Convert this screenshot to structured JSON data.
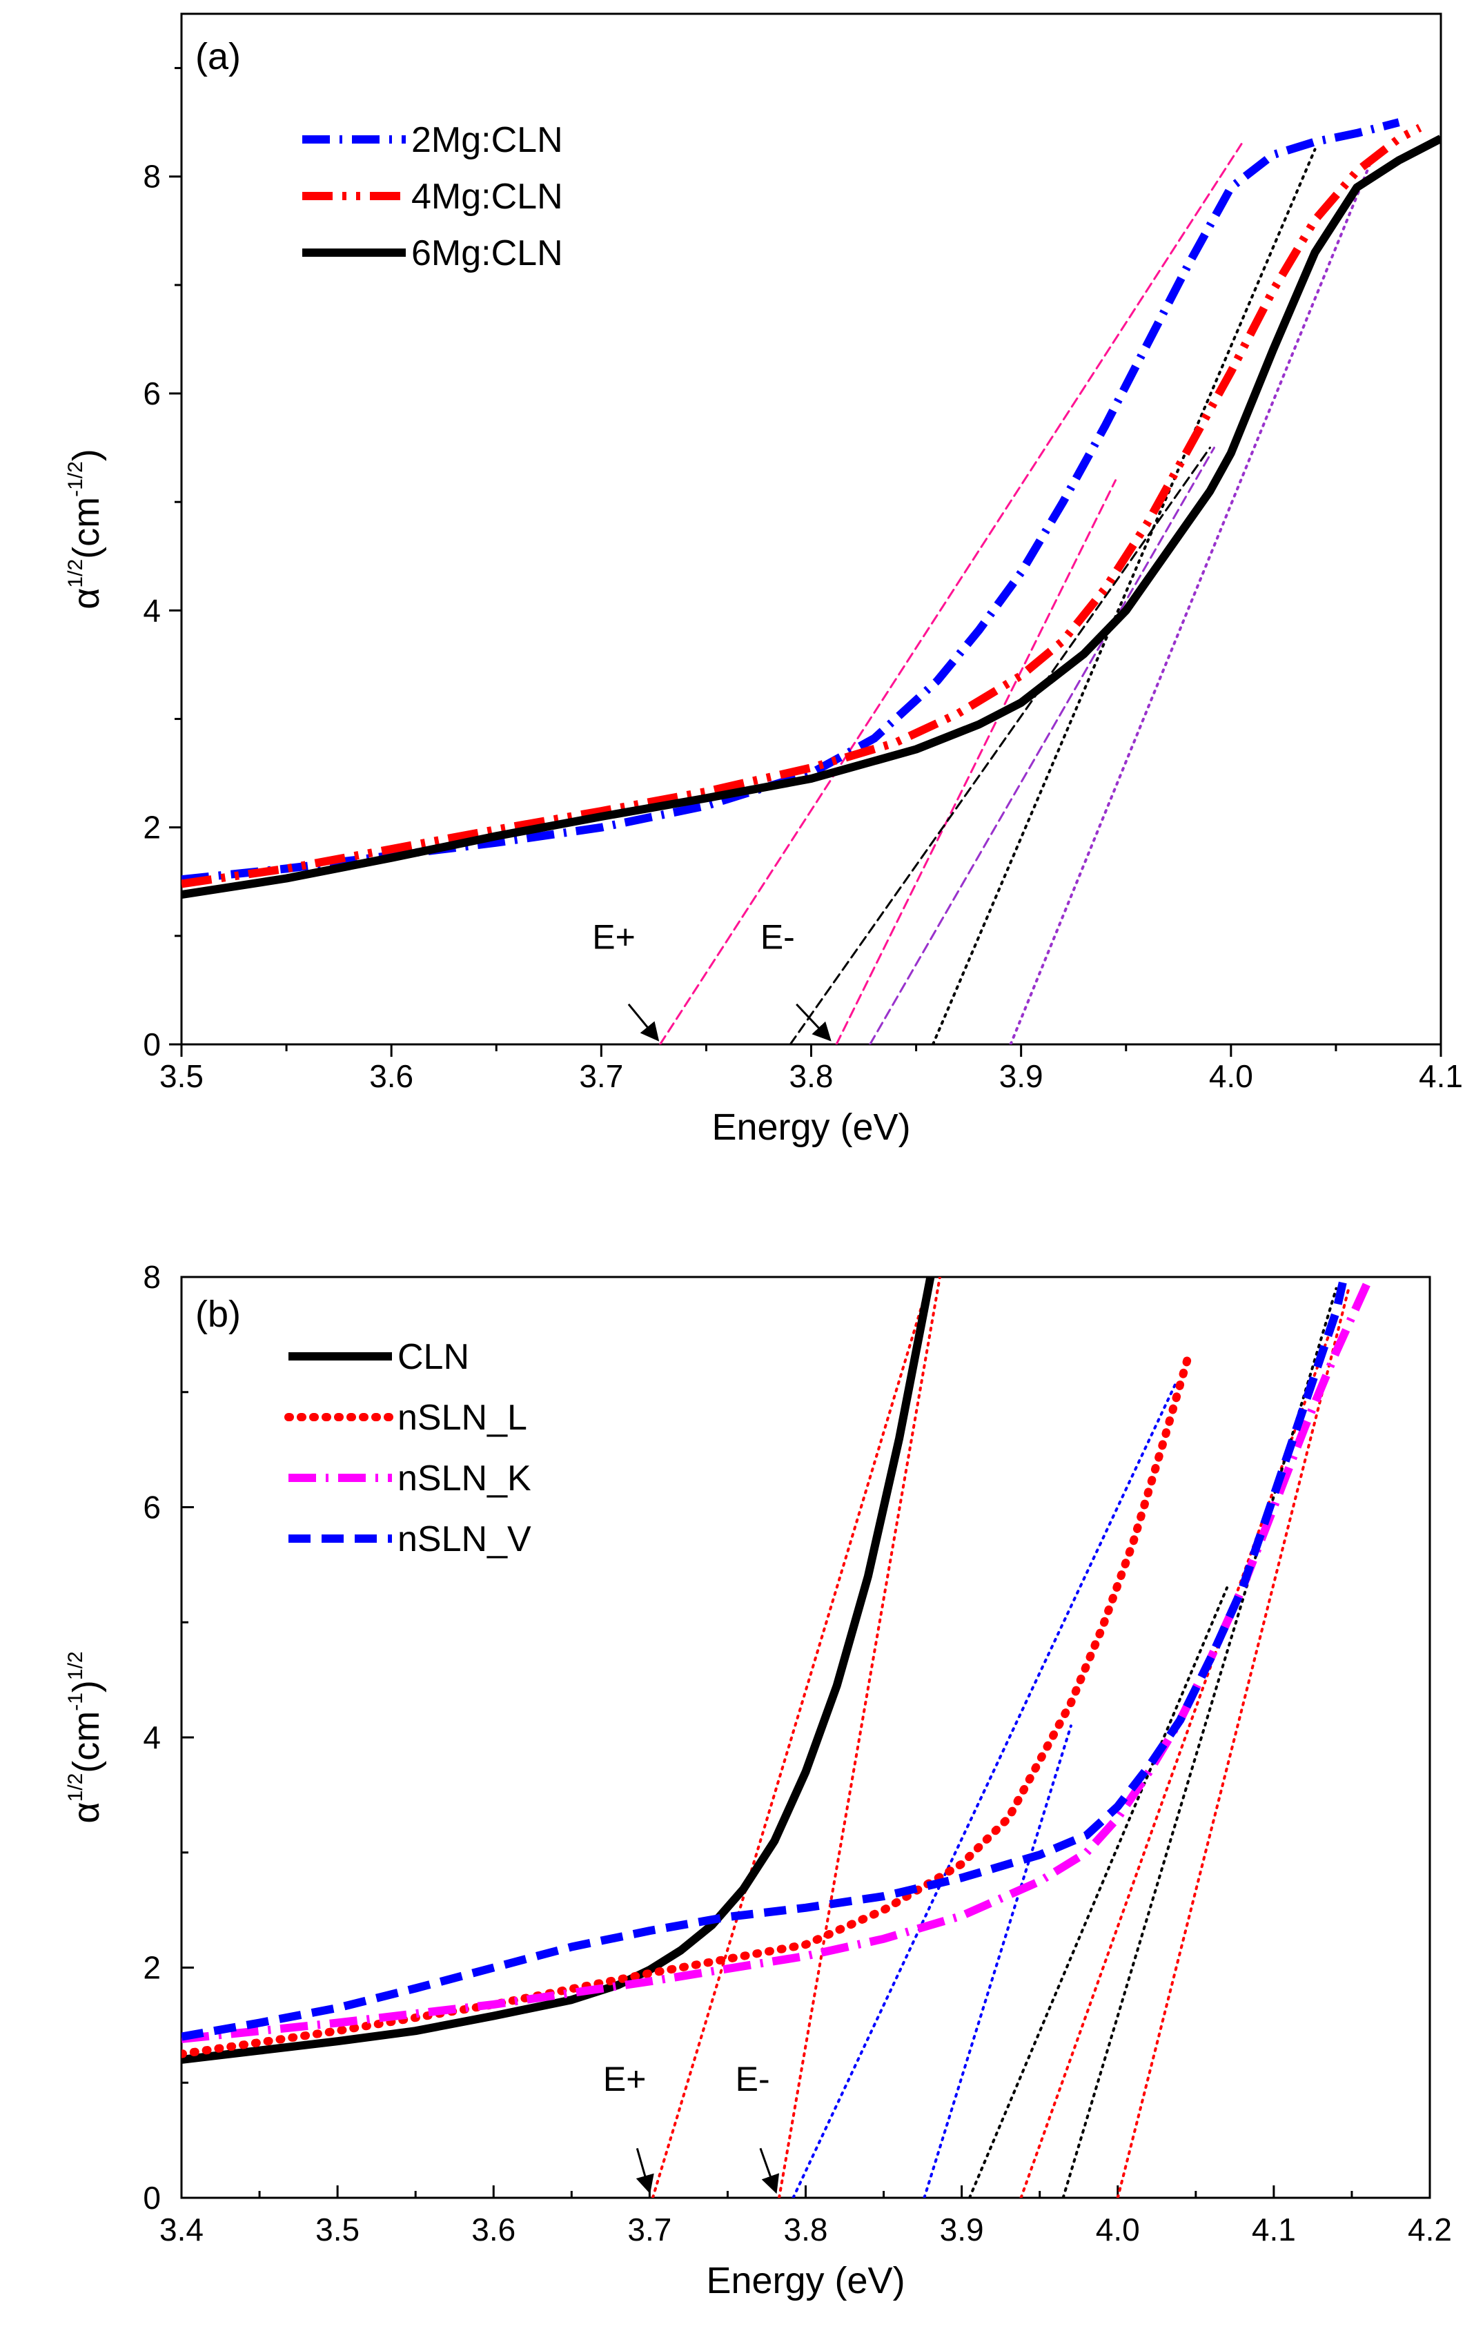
{
  "chart_data": [
    {
      "id": "a",
      "type": "line",
      "panel_label": "(a)",
      "xlabel": "Energy (eV)",
      "ylabel_base": "α",
      "ylabel_sup": "1/2",
      "ylabel_unit": "(cm",
      "ylabel_unit_sup": "-1/2",
      "ylabel_close": ")",
      "xlim": [
        3.5,
        4.1
      ],
      "ylim": [
        0,
        9.5
      ],
      "xticks": [
        3.5,
        3.6,
        3.7,
        3.8,
        3.9,
        4.0,
        4.1
      ],
      "xtick_labels": [
        "3.5",
        "3.6",
        "3.7",
        "3.8",
        "3.9",
        "4.0",
        "4.1"
      ],
      "yticks": [
        0,
        2,
        4,
        6,
        8
      ],
      "ytick_labels": [
        "0",
        "2",
        "4",
        "6",
        "8"
      ],
      "legend_position": "top-left",
      "series": [
        {
          "name": "2Mg:CLN",
          "color": "#0000ff",
          "style": "dashdot",
          "x": [
            3.5,
            3.55,
            3.6,
            3.65,
            3.7,
            3.75,
            3.8,
            3.83,
            3.86,
            3.88,
            3.9,
            3.92,
            3.94,
            3.96,
            3.98,
            4.0,
            4.02,
            4.04,
            4.06,
            4.08
          ],
          "y": [
            1.52,
            1.62,
            1.74,
            1.86,
            2.0,
            2.2,
            2.5,
            2.82,
            3.35,
            3.82,
            4.35,
            5.0,
            5.7,
            6.45,
            7.2,
            7.9,
            8.2,
            8.32,
            8.4,
            8.5
          ]
        },
        {
          "name": "4Mg:CLN",
          "color": "#ff0000",
          "style": "dashdotdot",
          "x": [
            3.5,
            3.55,
            3.6,
            3.65,
            3.7,
            3.75,
            3.8,
            3.84,
            3.87,
            3.9,
            3.92,
            3.94,
            3.96,
            3.98,
            4.0,
            4.02,
            4.04,
            4.06,
            4.08,
            4.09
          ],
          "y": [
            1.48,
            1.62,
            1.8,
            1.98,
            2.15,
            2.33,
            2.55,
            2.78,
            3.05,
            3.4,
            3.72,
            4.2,
            4.8,
            5.5,
            6.2,
            6.95,
            7.6,
            8.05,
            8.35,
            8.45
          ]
        },
        {
          "name": "6Mg:CLN",
          "color": "#000000",
          "style": "solid",
          "x": [
            3.5,
            3.55,
            3.6,
            3.65,
            3.7,
            3.75,
            3.8,
            3.85,
            3.88,
            3.9,
            3.93,
            3.95,
            3.97,
            3.99,
            4.0,
            4.02,
            4.04,
            4.06,
            4.08,
            4.1
          ],
          "y": [
            1.38,
            1.53,
            1.72,
            1.92,
            2.1,
            2.27,
            2.45,
            2.72,
            2.95,
            3.15,
            3.6,
            4.0,
            4.55,
            5.1,
            5.45,
            6.4,
            7.3,
            7.9,
            8.15,
            8.35
          ]
        }
      ],
      "fit_lines": [
        {
          "color": "#ff1493",
          "style": "dashed",
          "x": [
            3.728,
            4.005
          ],
          "y": [
            0,
            8.3
          ]
        },
        {
          "color": "#ff1493",
          "style": "dashed",
          "x": [
            3.812,
            3.945
          ],
          "y": [
            0,
            5.2
          ]
        },
        {
          "color": "#000000",
          "style": "dashed",
          "x": [
            3.79,
            3.99
          ],
          "y": [
            0,
            5.5
          ]
        },
        {
          "color": "#9932cc",
          "style": "dashed",
          "x": [
            3.828,
            3.992
          ],
          "y": [
            0,
            5.5
          ]
        },
        {
          "color": "#000000",
          "style": "dotted",
          "x": [
            3.858,
            4.04
          ],
          "y": [
            0,
            8.25
          ]
        },
        {
          "color": "#9932cc",
          "style": "dotted",
          "x": [
            3.895,
            4.068
          ],
          "y": [
            0,
            8.2
          ]
        }
      ],
      "annotations": [
        {
          "text": "E+",
          "label_at": [
            3.706,
            0.88
          ],
          "arrow_from": [
            3.713,
            0.37
          ],
          "arrow_to": [
            3.727,
            0.04
          ]
        },
        {
          "text": "E-",
          "label_at": [
            3.784,
            0.88
          ],
          "arrow_from": [
            3.793,
            0.37
          ],
          "arrow_to": [
            3.809,
            0.04
          ]
        }
      ]
    },
    {
      "id": "b",
      "type": "line",
      "panel_label": "(b)",
      "xlabel": "Energy (eV)",
      "ylabel_base": "α",
      "ylabel_sup": "1/2",
      "ylabel_unit": "(cm",
      "ylabel_unit_sup": "-1",
      "ylabel_close": ")",
      "ylabel_close_sup": "1/2",
      "xlim": [
        3.4,
        4.2
      ],
      "ylim": [
        0,
        8
      ],
      "xticks": [
        3.4,
        3.5,
        3.6,
        3.7,
        3.8,
        3.9,
        4.0,
        4.1,
        4.2
      ],
      "xtick_labels": [
        "3.4",
        "3.5",
        "3.6",
        "3.7",
        "3.8",
        "3.9",
        "4.0",
        "4.1",
        "4.2"
      ],
      "yticks": [
        0,
        2,
        4,
        6,
        8
      ],
      "ytick_labels": [
        "0",
        "2",
        "4",
        "6",
        "8"
      ],
      "legend_position": "top-left",
      "series": [
        {
          "name": "CLN",
          "color": "#000000",
          "style": "solid",
          "x": [
            3.4,
            3.45,
            3.5,
            3.55,
            3.6,
            3.65,
            3.68,
            3.7,
            3.72,
            3.74,
            3.76,
            3.78,
            3.8,
            3.82,
            3.84,
            3.86,
            3.88
          ],
          "y": [
            1.2,
            1.28,
            1.36,
            1.45,
            1.58,
            1.72,
            1.85,
            1.98,
            2.15,
            2.37,
            2.68,
            3.1,
            3.7,
            4.45,
            5.4,
            6.6,
            8.0
          ]
        },
        {
          "name": "nSLN_L",
          "color": "#ff0000",
          "style": "dotted",
          "x": [
            3.4,
            3.5,
            3.6,
            3.7,
            3.8,
            3.85,
            3.9,
            3.93,
            3.95,
            3.97,
            3.99,
            4.01,
            4.03,
            4.045
          ],
          "y": [
            1.25,
            1.45,
            1.68,
            1.95,
            2.2,
            2.5,
            2.9,
            3.3,
            3.8,
            4.3,
            4.95,
            5.7,
            6.6,
            7.3
          ]
        },
        {
          "name": "nSLN_K",
          "color": "#ff00ff",
          "style": "dashdot",
          "x": [
            3.4,
            3.5,
            3.6,
            3.7,
            3.8,
            3.85,
            3.9,
            3.95,
            3.98,
            4.0,
            4.02,
            4.04,
            4.06,
            4.08,
            4.1,
            4.12,
            4.14,
            4.16
          ],
          "y": [
            1.38,
            1.52,
            1.68,
            1.88,
            2.1,
            2.25,
            2.45,
            2.75,
            3.0,
            3.3,
            3.7,
            4.15,
            4.7,
            5.3,
            6.0,
            6.7,
            7.35,
            7.95
          ]
        },
        {
          "name": "nSLN_V",
          "color": "#0000ff",
          "style": "dashed",
          "x": [
            3.4,
            3.45,
            3.5,
            3.55,
            3.6,
            3.65,
            3.7,
            3.75,
            3.8,
            3.85,
            3.9,
            3.95,
            3.98,
            4.0,
            4.02,
            4.04,
            4.06,
            4.08,
            4.1,
            4.12,
            4.14,
            4.145
          ],
          "y": [
            1.4,
            1.52,
            1.65,
            1.82,
            2.0,
            2.18,
            2.32,
            2.44,
            2.52,
            2.62,
            2.78,
            2.98,
            3.15,
            3.4,
            3.75,
            4.15,
            4.7,
            5.3,
            6.1,
            6.9,
            7.7,
            8.0
          ]
        }
      ],
      "fit_lines": [
        {
          "color": "#ff0000",
          "style": "dotted",
          "x": [
            3.702,
            3.88
          ],
          "y": [
            0,
            8.0
          ]
        },
        {
          "color": "#ff0000",
          "style": "dotted",
          "x": [
            3.783,
            3.886
          ],
          "y": [
            0,
            8.0
          ]
        },
        {
          "color": "#0000ff",
          "style": "dotted",
          "x": [
            3.792,
            4.038
          ],
          "y": [
            0,
            7.1
          ]
        },
        {
          "color": "#0000ff",
          "style": "dotted",
          "x": [
            3.876,
            3.97
          ],
          "y": [
            0,
            4.1
          ]
        },
        {
          "color": "#000000",
          "style": "dotted",
          "x": [
            3.905,
            4.07
          ],
          "y": [
            0,
            5.3
          ]
        },
        {
          "color": "#ff0000",
          "style": "dotted",
          "x": [
            3.938,
            4.138
          ],
          "y": [
            0,
            7.6
          ]
        },
        {
          "color": "#000000",
          "style": "dotted",
          "x": [
            3.965,
            4.14
          ],
          "y": [
            0,
            7.9
          ]
        },
        {
          "color": "#ff0000",
          "style": "dotted",
          "x": [
            4.0,
            4.148
          ],
          "y": [
            0,
            7.9
          ]
        }
      ],
      "annotations": [
        {
          "text": "E+",
          "label_at": [
            3.684,
            0.93
          ],
          "arrow_from": [
            3.692,
            0.43
          ],
          "arrow_to": [
            3.7,
            0.05
          ]
        },
        {
          "text": "E-",
          "label_at": [
            3.766,
            0.93
          ],
          "arrow_from": [
            3.771,
            0.43
          ],
          "arrow_to": [
            3.781,
            0.05
          ]
        }
      ]
    }
  ]
}
